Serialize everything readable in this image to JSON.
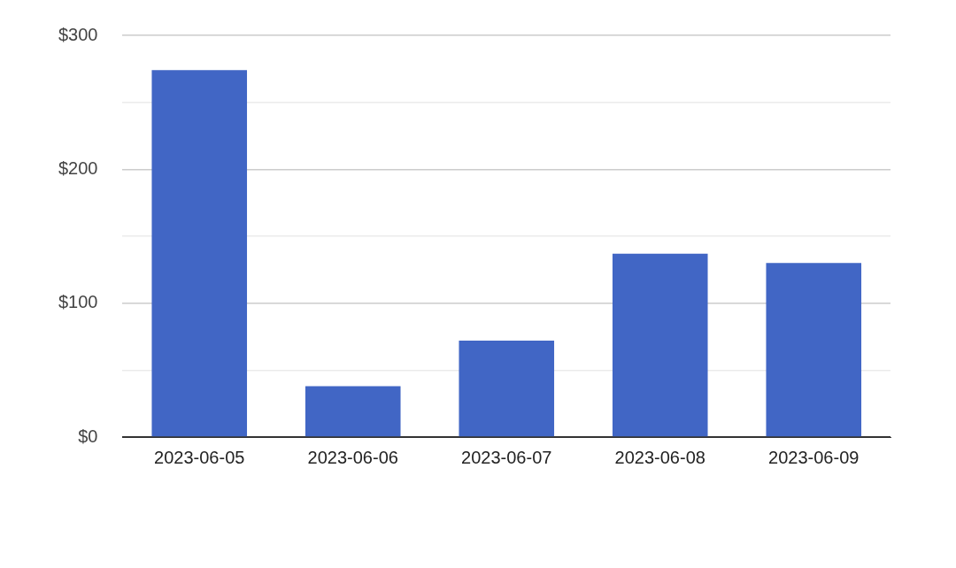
{
  "chart_data": {
    "type": "bar",
    "categories": [
      "2023-06-05",
      "2023-06-06",
      "2023-06-07",
      "2023-06-08",
      "2023-06-09"
    ],
    "values": [
      274,
      38,
      72,
      137,
      130
    ],
    "color": "#4166c5",
    "ylim": [
      0,
      300
    ],
    "yticks": [
      {
        "value": 0,
        "label": "$0"
      },
      {
        "value": 50,
        "label": null
      },
      {
        "value": 100,
        "label": "$100"
      },
      {
        "value": 150,
        "label": null
      },
      {
        "value": 200,
        "label": "$200"
      },
      {
        "value": 250,
        "label": null
      },
      {
        "value": 300,
        "label": "$300"
      }
    ],
    "grid": "y",
    "legend": false
  }
}
